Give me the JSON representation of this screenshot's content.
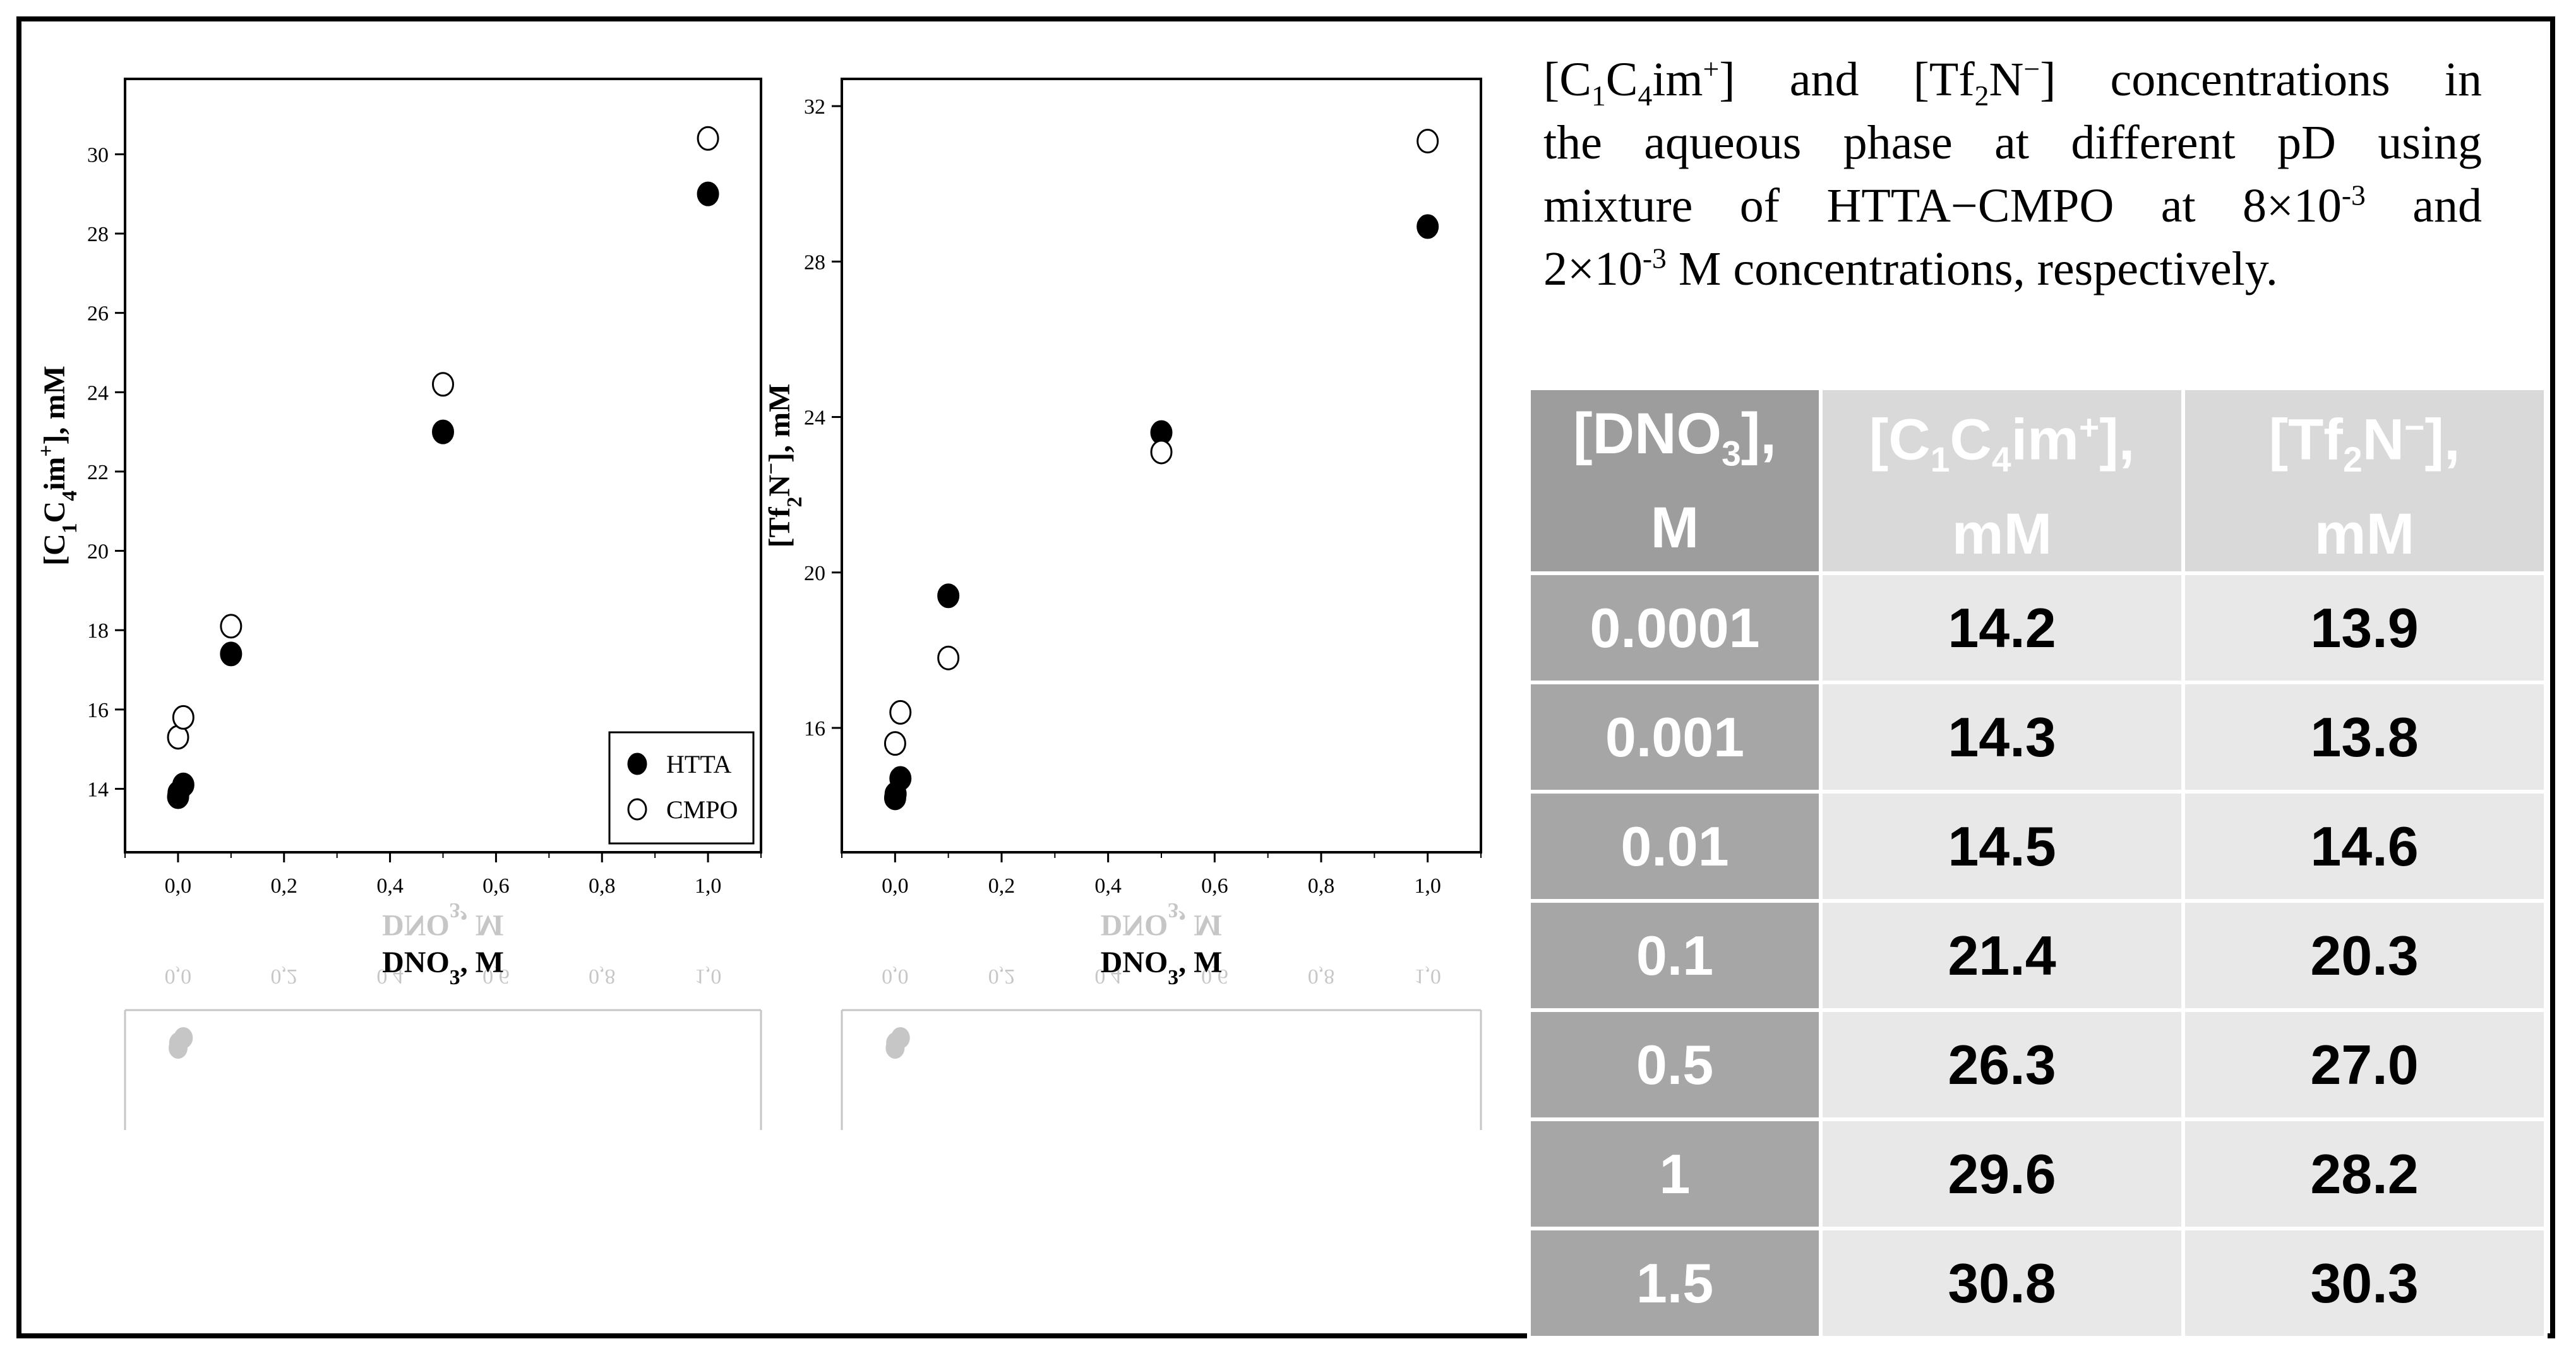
{
  "caption": {
    "line1": "[C1C4im+] and [Tf2N−] concentrations in",
    "line2": "the aqueous phase at different pD using",
    "line3": "mixture of HTTA−CMPO at 8×10-3 and",
    "line4": "2×10-3 M concentrations, respectively.",
    "parts": {
      "c1c4_open": "[C",
      "sub1": "1",
      "c": "C",
      "sub4": "4",
      "im": "im",
      "plus": "+",
      "and_tf": "] and [Tf",
      "sub2": "2",
      "n": "N",
      "minus": "−",
      "rest1": "] concentrations in",
      "l3a": "mixture of HTTA−CMPO at 8×10",
      "exp": "-3",
      "l3b": " and",
      "l4a": "2×10",
      "l4b": " M concentrations, respectively."
    }
  },
  "legend": {
    "htta": "HTTA",
    "cmpo": "CMPO"
  },
  "table": {
    "headers": {
      "col1_a": "[DNO",
      "col1_sub": "3",
      "col1_b": "],",
      "col1_unit": "M",
      "col2_a": "[C",
      "col2_sub1": "1",
      "col2_b": "C",
      "col2_sub4": "4",
      "col2_c": "im",
      "col2_sup": "+",
      "col2_d": "],",
      "col2_unit": "mM",
      "col3_a": "[Tf",
      "col3_sub": "2",
      "col3_b": "N",
      "col3_sup": "−",
      "col3_c": "],",
      "col3_unit": "mM"
    },
    "rows": [
      {
        "dno3": "0.0001",
        "c1c4im": "14.2",
        "tf2n": "13.9"
      },
      {
        "dno3": "0.001",
        "c1c4im": "14.3",
        "tf2n": "13.8"
      },
      {
        "dno3": "0.01",
        "c1c4im": "14.5",
        "tf2n": "14.6"
      },
      {
        "dno3": "0.1",
        "c1c4im": "21.4",
        "tf2n": "20.3"
      },
      {
        "dno3": "0.5",
        "c1c4im": "26.3",
        "tf2n": "27.0"
      },
      {
        "dno3": "1",
        "c1c4im": "29.6",
        "tf2n": "28.2"
      },
      {
        "dno3": "1.5",
        "c1c4im": "30.8",
        "tf2n": "30.3"
      }
    ]
  },
  "chart_data": [
    {
      "type": "scatter",
      "xlabel": "DNO3, M",
      "ylabel": "[C1C4im+], mM",
      "xlim": [
        -0.1,
        1.1
      ],
      "ylim": [
        12.4,
        31.9
      ],
      "xticks": [
        0.0,
        0.2,
        0.4,
        0.6,
        0.8,
        1.0
      ],
      "xtick_labels": [
        "0,0",
        "0,2",
        "0,4",
        "0,6",
        "0,8",
        "1,0"
      ],
      "yticks": [
        14,
        16,
        18,
        20,
        22,
        24,
        26,
        28,
        30
      ],
      "ytick_labels": [
        "14",
        "16",
        "18",
        "20",
        "22",
        "24",
        "26",
        "28",
        "30"
      ],
      "legend_position": "bottom-right",
      "series": [
        {
          "name": "HTTA",
          "marker": "filled-circle",
          "x": [
            0.0001,
            0.001,
            0.01,
            0.1,
            0.5,
            1.0
          ],
          "y": [
            13.8,
            13.9,
            14.1,
            17.4,
            23.0,
            29.0
          ]
        },
        {
          "name": "CMPO",
          "marker": "open-circle",
          "x": [
            0.0001,
            0.01,
            0.1,
            0.5,
            1.0
          ],
          "y": [
            15.3,
            15.8,
            18.1,
            24.2,
            30.4
          ]
        }
      ]
    },
    {
      "type": "scatter",
      "xlabel": "DNO3, M",
      "ylabel": "[Tf2N−], mM",
      "xlim": [
        -0.1,
        1.1
      ],
      "ylim": [
        12.8,
        32.7
      ],
      "xticks": [
        0.0,
        0.2,
        0.4,
        0.6,
        0.8,
        1.0
      ],
      "xtick_labels": [
        "0,0",
        "0,2",
        "0,4",
        "0,6",
        "0,8",
        "1,0"
      ],
      "yticks": [
        16,
        20,
        24,
        28,
        32
      ],
      "ytick_labels": [
        "16",
        "20",
        "24",
        "28",
        "32"
      ],
      "series": [
        {
          "name": "HTTA",
          "marker": "filled-circle",
          "x": [
            0.0001,
            0.001,
            0.01,
            0.1,
            0.5,
            1.0
          ],
          "y": [
            14.2,
            14.3,
            14.7,
            19.4,
            23.6,
            28.9
          ]
        },
        {
          "name": "CMPO",
          "marker": "open-circle",
          "x": [
            0.0001,
            0.01,
            0.1,
            0.5,
            1.0
          ],
          "y": [
            15.6,
            16.4,
            17.8,
            23.1,
            31.1
          ]
        }
      ]
    }
  ]
}
